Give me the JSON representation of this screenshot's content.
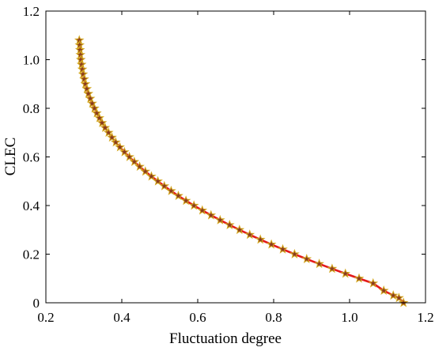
{
  "chart_data": {
    "type": "scatter",
    "title": "",
    "xlabel": "Fluctuation degree",
    "ylabel": "CLEC",
    "xlim": [
      0.2,
      1.2
    ],
    "ylim": [
      0,
      1.2
    ],
    "xticks": [
      "0.2",
      "0.4",
      "0.6",
      "0.8",
      "1.0",
      "1.2"
    ],
    "yticks": [
      "0",
      "0.2",
      "0.4",
      "0.6",
      "0.8",
      "1.0",
      "1.2"
    ],
    "grid": false,
    "legend": "none",
    "marker": "star",
    "colors": {
      "marker_fill": "#8b3a1e",
      "marker_edge": "#d4a820",
      "line": "#e31a1c"
    },
    "series": [
      {
        "points": [
          [
            0.288,
            1.08
          ],
          [
            0.289,
            1.06
          ],
          [
            0.29,
            1.04
          ],
          [
            0.291,
            1.02
          ],
          [
            0.292,
            1.0
          ],
          [
            0.294,
            0.98
          ],
          [
            0.296,
            0.96
          ],
          [
            0.298,
            0.94
          ],
          [
            0.301,
            0.92
          ],
          [
            0.304,
            0.9
          ],
          [
            0.308,
            0.88
          ],
          [
            0.312,
            0.86
          ],
          [
            0.317,
            0.84
          ],
          [
            0.322,
            0.82
          ],
          [
            0.328,
            0.8
          ],
          [
            0.334,
            0.78
          ],
          [
            0.341,
            0.76
          ],
          [
            0.348,
            0.74
          ],
          [
            0.356,
            0.72
          ],
          [
            0.365,
            0.7
          ],
          [
            0.374,
            0.68
          ],
          [
            0.384,
            0.66
          ],
          [
            0.395,
            0.64
          ],
          [
            0.407,
            0.62
          ],
          [
            0.42,
            0.6
          ],
          [
            0.433,
            0.58
          ],
          [
            0.447,
            0.56
          ],
          [
            0.462,
            0.54
          ],
          [
            0.478,
            0.52
          ],
          [
            0.495,
            0.5
          ],
          [
            0.512,
            0.48
          ],
          [
            0.53,
            0.46
          ],
          [
            0.549,
            0.44
          ],
          [
            0.569,
            0.42
          ],
          [
            0.59,
            0.4
          ],
          [
            0.612,
            0.38
          ],
          [
            0.635,
            0.36
          ],
          [
            0.659,
            0.34
          ],
          [
            0.684,
            0.32
          ],
          [
            0.71,
            0.3
          ],
          [
            0.737,
            0.28
          ],
          [
            0.765,
            0.26
          ],
          [
            0.794,
            0.24
          ],
          [
            0.824,
            0.22
          ],
          [
            0.855,
            0.2
          ],
          [
            0.887,
            0.18
          ],
          [
            0.92,
            0.16
          ],
          [
            0.954,
            0.14
          ],
          [
            0.989,
            0.12
          ],
          [
            1.025,
            0.1
          ],
          [
            1.062,
            0.08
          ],
          [
            1.09,
            0.05
          ],
          [
            1.115,
            0.03
          ],
          [
            1.13,
            0.02
          ],
          [
            1.142,
            0.0
          ]
        ]
      }
    ]
  }
}
